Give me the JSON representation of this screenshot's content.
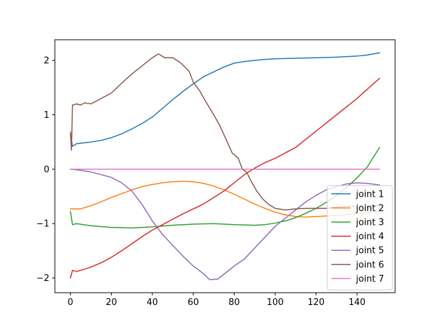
{
  "chart_data": {
    "type": "line",
    "title": "",
    "xlabel": "",
    "ylabel": "",
    "xlim": [
      -7.6,
      158.6
    ],
    "ylim": [
      -2.27,
      2.38
    ],
    "xticks": [
      0,
      20,
      40,
      60,
      80,
      100,
      120,
      140
    ],
    "yticks": [
      2,
      1,
      0,
      -1,
      -2
    ],
    "ytick_labels": [
      "2",
      "1",
      "0",
      "−1",
      "−2"
    ],
    "grid": false,
    "legend_position": "lower-right",
    "series": [
      {
        "name": "joint 1",
        "color": "#1f77b4",
        "points": [
          [
            0,
            0.65
          ],
          [
            1,
            0.42
          ],
          [
            3,
            0.47
          ],
          [
            10,
            0.5
          ],
          [
            15,
            0.53
          ],
          [
            20,
            0.58
          ],
          [
            25,
            0.65
          ],
          [
            30,
            0.74
          ],
          [
            35,
            0.84
          ],
          [
            40,
            0.96
          ],
          [
            45,
            1.12
          ],
          [
            50,
            1.28
          ],
          [
            55,
            1.43
          ],
          [
            60,
            1.57
          ],
          [
            65,
            1.7
          ],
          [
            70,
            1.79
          ],
          [
            75,
            1.88
          ],
          [
            80,
            1.95
          ],
          [
            85,
            1.98
          ],
          [
            90,
            2.0
          ],
          [
            95,
            2.02
          ],
          [
            100,
            2.03
          ],
          [
            110,
            2.04
          ],
          [
            120,
            2.05
          ],
          [
            130,
            2.06
          ],
          [
            140,
            2.08
          ],
          [
            145,
            2.1
          ],
          [
            151,
            2.14
          ]
        ]
      },
      {
        "name": "joint 2",
        "color": "#ff7f0e",
        "points": [
          [
            0,
            -0.73
          ],
          [
            5,
            -0.73
          ],
          [
            10,
            -0.67
          ],
          [
            15,
            -0.6
          ],
          [
            20,
            -0.52
          ],
          [
            25,
            -0.45
          ],
          [
            30,
            -0.38
          ],
          [
            35,
            -0.32
          ],
          [
            40,
            -0.28
          ],
          [
            45,
            -0.25
          ],
          [
            50,
            -0.23
          ],
          [
            55,
            -0.22
          ],
          [
            60,
            -0.23
          ],
          [
            65,
            -0.26
          ],
          [
            70,
            -0.31
          ],
          [
            75,
            -0.38
          ],
          [
            80,
            -0.46
          ],
          [
            85,
            -0.55
          ],
          [
            90,
            -0.64
          ],
          [
            95,
            -0.72
          ],
          [
            100,
            -0.79
          ],
          [
            105,
            -0.84
          ],
          [
            110,
            -0.87
          ],
          [
            115,
            -0.88
          ],
          [
            120,
            -0.87
          ],
          [
            125,
            -0.86
          ],
          [
            130,
            -0.85
          ],
          [
            140,
            -0.82
          ],
          [
            151,
            -0.78
          ]
        ]
      },
      {
        "name": "joint 3",
        "color": "#2ca02c",
        "points": [
          [
            0,
            -0.78
          ],
          [
            1,
            -1.02
          ],
          [
            3,
            -1.0
          ],
          [
            10,
            -1.04
          ],
          [
            20,
            -1.07
          ],
          [
            30,
            -1.08
          ],
          [
            40,
            -1.06
          ],
          [
            50,
            -1.03
          ],
          [
            60,
            -1.01
          ],
          [
            70,
            -1.0
          ],
          [
            80,
            -1.02
          ],
          [
            90,
            -1.03
          ],
          [
            95,
            -1.02
          ],
          [
            100,
            -0.99
          ],
          [
            105,
            -0.95
          ],
          [
            110,
            -0.89
          ],
          [
            115,
            -0.81
          ],
          [
            120,
            -0.72
          ],
          [
            125,
            -0.61
          ],
          [
            130,
            -0.48
          ],
          [
            135,
            -0.33
          ],
          [
            140,
            -0.16
          ],
          [
            145,
            0.04
          ],
          [
            151,
            0.4
          ]
        ]
      },
      {
        "name": "joint 4",
        "color": "#d62728",
        "points": [
          [
            0,
            -2.0
          ],
          [
            1,
            -1.86
          ],
          [
            3,
            -1.88
          ],
          [
            5,
            -1.86
          ],
          [
            10,
            -1.8
          ],
          [
            15,
            -1.72
          ],
          [
            20,
            -1.62
          ],
          [
            25,
            -1.5
          ],
          [
            30,
            -1.37
          ],
          [
            35,
            -1.24
          ],
          [
            40,
            -1.12
          ],
          [
            45,
            -1.02
          ],
          [
            50,
            -0.92
          ],
          [
            55,
            -0.82
          ],
          [
            60,
            -0.73
          ],
          [
            65,
            -0.64
          ],
          [
            70,
            -0.52
          ],
          [
            75,
            -0.4
          ],
          [
            80,
            -0.25
          ],
          [
            85,
            -0.1
          ],
          [
            90,
            0.02
          ],
          [
            95,
            0.12
          ],
          [
            100,
            0.2
          ],
          [
            105,
            0.3
          ],
          [
            110,
            0.4
          ],
          [
            115,
            0.55
          ],
          [
            120,
            0.7
          ],
          [
            125,
            0.85
          ],
          [
            130,
            1.0
          ],
          [
            135,
            1.15
          ],
          [
            140,
            1.3
          ],
          [
            145,
            1.47
          ],
          [
            151,
            1.67
          ]
        ]
      },
      {
        "name": "joint 5",
        "color": "#9467bd",
        "points": [
          [
            0,
            0.0
          ],
          [
            5,
            -0.02
          ],
          [
            10,
            -0.05
          ],
          [
            15,
            -0.1
          ],
          [
            20,
            -0.15
          ],
          [
            25,
            -0.25
          ],
          [
            30,
            -0.4
          ],
          [
            35,
            -0.65
          ],
          [
            40,
            -0.95
          ],
          [
            45,
            -1.2
          ],
          [
            50,
            -1.4
          ],
          [
            55,
            -1.6
          ],
          [
            60,
            -1.78
          ],
          [
            65,
            -1.92
          ],
          [
            68,
            -2.03
          ],
          [
            72,
            -2.02
          ],
          [
            76,
            -1.9
          ],
          [
            80,
            -1.78
          ],
          [
            85,
            -1.65
          ],
          [
            90,
            -1.45
          ],
          [
            95,
            -1.25
          ],
          [
            100,
            -1.05
          ],
          [
            105,
            -0.9
          ],
          [
            110,
            -0.75
          ],
          [
            115,
            -0.6
          ],
          [
            120,
            -0.48
          ],
          [
            125,
            -0.38
          ],
          [
            130,
            -0.32
          ],
          [
            135,
            -0.27
          ],
          [
            140,
            -0.25
          ],
          [
            145,
            -0.26
          ],
          [
            151,
            -0.29
          ]
        ]
      },
      {
        "name": "joint 6",
        "color": "#8c564b",
        "points": [
          [
            0,
            0.68
          ],
          [
            0.5,
            0.35
          ],
          [
            1,
            1.18
          ],
          [
            3,
            1.2
          ],
          [
            5,
            1.18
          ],
          [
            7,
            1.22
          ],
          [
            10,
            1.2
          ],
          [
            15,
            1.3
          ],
          [
            20,
            1.4
          ],
          [
            25,
            1.58
          ],
          [
            30,
            1.75
          ],
          [
            35,
            1.9
          ],
          [
            40,
            2.05
          ],
          [
            43,
            2.12
          ],
          [
            46,
            2.05
          ],
          [
            50,
            2.05
          ],
          [
            54,
            1.95
          ],
          [
            58,
            1.8
          ],
          [
            60,
            1.6
          ],
          [
            63,
            1.45
          ],
          [
            66,
            1.25
          ],
          [
            70,
            1.0
          ],
          [
            73,
            0.8
          ],
          [
            76,
            0.55
          ],
          [
            79,
            0.3
          ],
          [
            82,
            0.2
          ],
          [
            84,
            0.0
          ],
          [
            86,
            -0.05
          ],
          [
            88,
            -0.2
          ],
          [
            91,
            -0.4
          ],
          [
            94,
            -0.55
          ],
          [
            97,
            -0.65
          ],
          [
            100,
            -0.72
          ],
          [
            105,
            -0.75
          ],
          [
            110,
            -0.73
          ],
          [
            115,
            -0.72
          ],
          [
            120,
            -0.72
          ],
          [
            125,
            -0.72
          ],
          [
            130,
            -0.7
          ],
          [
            135,
            -0.68
          ],
          [
            140,
            -0.68
          ],
          [
            145,
            -0.67
          ],
          [
            151,
            -0.67
          ]
        ]
      },
      {
        "name": "joint 7",
        "color": "#e377c2",
        "points": [
          [
            0,
            0.0
          ],
          [
            151,
            0.0
          ]
        ]
      }
    ]
  }
}
